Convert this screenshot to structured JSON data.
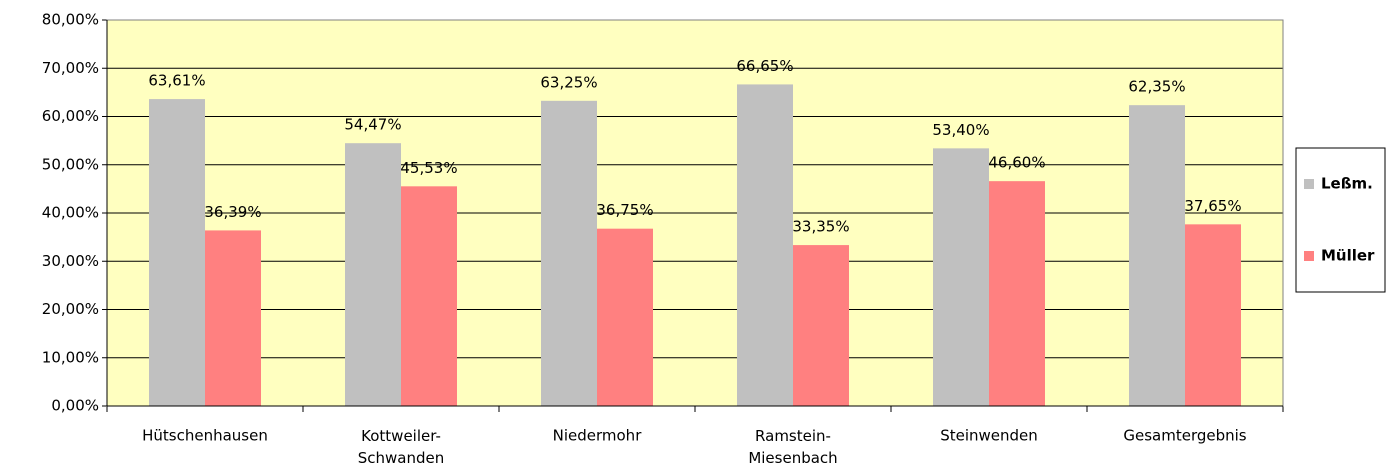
{
  "chart_data": {
    "type": "bar",
    "categories": [
      "Hütschenhausen",
      "Kottweiler-Schwanden",
      "Niedermohr",
      "Ramstein-Miesenbach",
      "Steinwenden",
      "Gesamtergebnis"
    ],
    "series": [
      {
        "name": "Leßm.",
        "color": "#c0c0c0",
        "values": [
          63.61,
          54.47,
          63.25,
          66.65,
          53.4,
          62.35
        ],
        "value_labels": [
          "63,61%",
          "54,47%",
          "63,25%",
          "66,65%",
          "53,40%",
          "62,35%"
        ]
      },
      {
        "name": "Müller",
        "color": "#ff8080",
        "values": [
          36.39,
          45.53,
          36.75,
          33.35,
          46.6,
          37.65
        ],
        "value_labels": [
          "36,39%",
          "45,53%",
          "36,75%",
          "33,35%",
          "46,60%",
          "37,65%"
        ]
      }
    ],
    "ylim": [
      0,
      80
    ],
    "yticks": [
      {
        "value": 0,
        "label": "0,00%"
      },
      {
        "value": 10,
        "label": "10,00%"
      },
      {
        "value": 20,
        "label": "20,00%"
      },
      {
        "value": 30,
        "label": "30,00%"
      },
      {
        "value": 40,
        "label": "40,00%"
      },
      {
        "value": 50,
        "label": "50,00%"
      },
      {
        "value": 60,
        "label": "60,00%"
      },
      {
        "value": 70,
        "label": "70,00%"
      },
      {
        "value": 80,
        "label": "80,00%"
      }
    ],
    "grid": true,
    "legend": "right",
    "plot_background": "#ffffc0"
  }
}
